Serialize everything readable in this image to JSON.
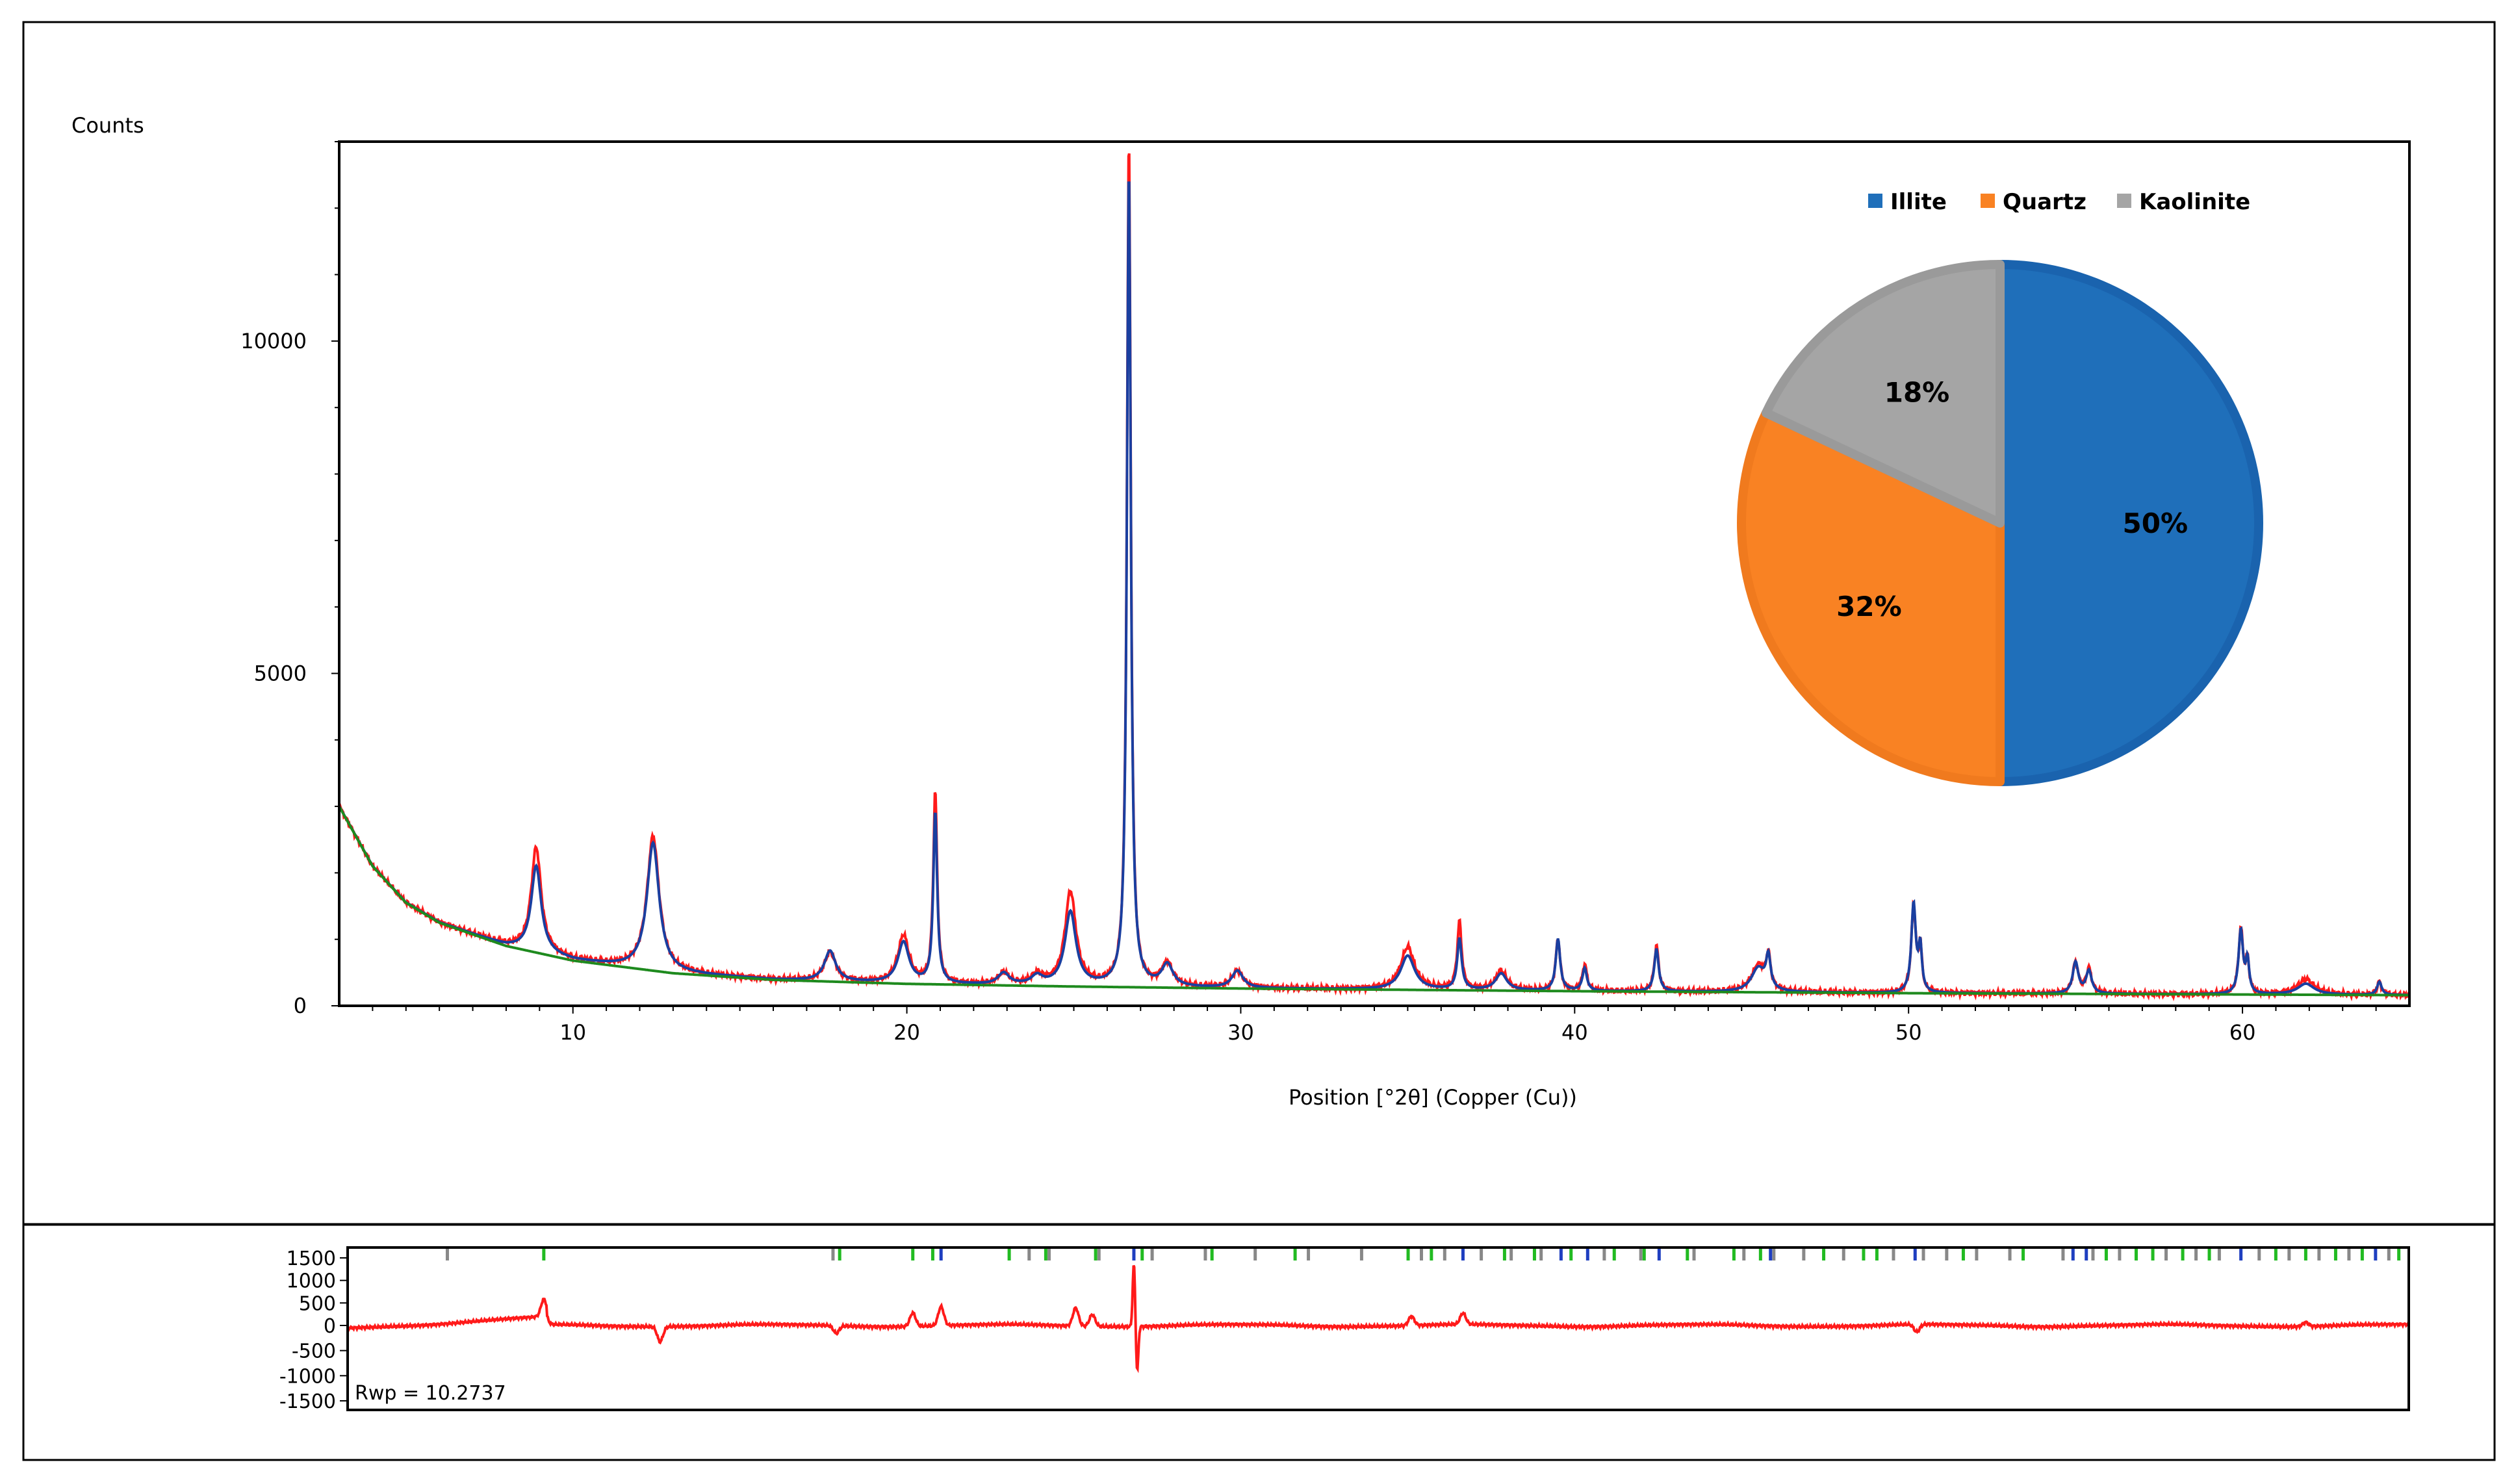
{
  "chart_data": [
    {
      "type": "line",
      "ylabel": "Counts",
      "xlabel": "Position [°2θ] (Copper (Cu))",
      "xlim": [
        3,
        65
      ],
      "ylim": [
        0,
        13000
      ],
      "x_ticks": [
        10,
        20,
        30,
        40,
        50,
        60
      ],
      "y_ticks": [
        0,
        5000,
        10000
      ],
      "series_colors": {
        "observed": "#ff1a1a",
        "calculated": "#1a3fa0",
        "background": "#1e8a1e"
      },
      "background": {
        "x": [
          3,
          4,
          5,
          6,
          8,
          10,
          13,
          16,
          20,
          25,
          30,
          40,
          50,
          60,
          65
        ],
        "y": [
          3000,
          2100,
          1550,
          1250,
          900,
          680,
          490,
          390,
          330,
          290,
          260,
          220,
          190,
          170,
          160
        ]
      },
      "peaks": [
        {
          "pos": 8.9,
          "obs": 2380,
          "calc": 2100,
          "w": 0.18
        },
        {
          "pos": 12.4,
          "obs": 2550,
          "calc": 2450,
          "w": 0.22
        },
        {
          "pos": 17.7,
          "obs": 800,
          "calc": 820,
          "w": 0.2
        },
        {
          "pos": 19.9,
          "obs": 1050,
          "calc": 950,
          "w": 0.2
        },
        {
          "pos": 20.85,
          "obs": 3200,
          "calc": 2900,
          "w": 0.07
        },
        {
          "pos": 22.9,
          "obs": 480,
          "calc": 480,
          "w": 0.2
        },
        {
          "pos": 23.9,
          "obs": 450,
          "calc": 430,
          "w": 0.2
        },
        {
          "pos": 24.9,
          "obs": 1700,
          "calc": 1400,
          "w": 0.2
        },
        {
          "pos": 26.65,
          "obs": 13000,
          "calc": 12600,
          "w": 0.07
        },
        {
          "pos": 27.8,
          "obs": 620,
          "calc": 600,
          "w": 0.2
        },
        {
          "pos": 29.9,
          "obs": 520,
          "calc": 520,
          "w": 0.2
        },
        {
          "pos": 35.0,
          "obs": 880,
          "calc": 750,
          "w": 0.25
        },
        {
          "pos": 36.55,
          "obs": 1250,
          "calc": 1000,
          "w": 0.08
        },
        {
          "pos": 37.8,
          "obs": 520,
          "calc": 480,
          "w": 0.2
        },
        {
          "pos": 39.5,
          "obs": 1000,
          "calc": 1000,
          "w": 0.08
        },
        {
          "pos": 40.3,
          "obs": 620,
          "calc": 560,
          "w": 0.08
        },
        {
          "pos": 42.45,
          "obs": 900,
          "calc": 850,
          "w": 0.08
        },
        {
          "pos": 45.5,
          "obs": 600,
          "calc": 560,
          "w": 0.25
        },
        {
          "pos": 45.8,
          "obs": 680,
          "calc": 680,
          "w": 0.08
        },
        {
          "pos": 50.15,
          "obs": 1500,
          "calc": 1520,
          "w": 0.08
        },
        {
          "pos": 50.35,
          "obs": 850,
          "calc": 850,
          "w": 0.06
        },
        {
          "pos": 55.0,
          "obs": 650,
          "calc": 650,
          "w": 0.1
        },
        {
          "pos": 55.4,
          "obs": 550,
          "calc": 520,
          "w": 0.1
        },
        {
          "pos": 59.95,
          "obs": 1150,
          "calc": 1130,
          "w": 0.08
        },
        {
          "pos": 60.15,
          "obs": 650,
          "calc": 650,
          "w": 0.06
        },
        {
          "pos": 61.9,
          "obs": 400,
          "calc": 330,
          "w": 0.3
        },
        {
          "pos": 64.1,
          "obs": 360,
          "calc": 360,
          "w": 0.08
        }
      ]
    },
    {
      "type": "pie",
      "categories": [
        "Illite",
        "Quartz",
        "Kaolinite"
      ],
      "values": [
        50,
        32,
        18
      ],
      "labels": [
        "50%",
        "32%",
        "18%"
      ],
      "colors": [
        "#1f6fba",
        "#f98223",
        "#a5a5a5"
      ],
      "edge_colors": [
        "#1a63ae",
        "#f07a1e",
        "#9a9a9a"
      ],
      "legend_position": "top"
    },
    {
      "type": "line",
      "title": "",
      "annotation": "Rwp = 10.2737",
      "xlim": [
        3,
        65
      ],
      "ylim": [
        -1500,
        1500
      ],
      "y_ticks": [
        1500,
        1000,
        500,
        0,
        -500,
        -1000,
        -1500
      ],
      "y_tick_labels": [
        "1500",
        "1000",
        "500",
        "0",
        "-500",
        "-1000",
        "-1500"
      ],
      "difference_color": "#ff1a1a",
      "difference_features": [
        {
          "pos": 8.9,
          "amp": 380
        },
        {
          "pos": 12.4,
          "amp": -300
        },
        {
          "pos": 17.7,
          "amp": -150
        },
        {
          "pos": 20.0,
          "amp": 300
        },
        {
          "pos": 20.85,
          "amp": 420
        },
        {
          "pos": 24.9,
          "amp": 400
        },
        {
          "pos": 25.4,
          "amp": 260
        },
        {
          "pos": 26.65,
          "amp": 1400
        },
        {
          "pos": 26.75,
          "amp": -900
        },
        {
          "pos": 35.0,
          "amp": 200
        },
        {
          "pos": 36.55,
          "amp": 250
        },
        {
          "pos": 50.2,
          "amp": -150
        },
        {
          "pos": 61.9,
          "amp": 90
        }
      ],
      "reflection_marks": {
        "colors": {
          "kaolinite": "#888888",
          "quartz": "#1f3fc0",
          "illite": "#22bb22"
        },
        "kaolinite": [
          6.0,
          17.6,
          23.5,
          24.1,
          25.6,
          27.2,
          28.8,
          30.3,
          31.9,
          33.5,
          35.3,
          36.0,
          37.1,
          38.0,
          38.9,
          40.8,
          41.9,
          43.5,
          45.0,
          45.9,
          46.8,
          48.0,
          49.5,
          50.4,
          51.1,
          52.0,
          53.0,
          54.6,
          55.5,
          56.3,
          57.7,
          58.6,
          59.3,
          60.5,
          61.4,
          62.3,
          63.2,
          64.4
        ],
        "quartz": [
          20.85,
          26.65,
          36.55,
          39.5,
          40.3,
          42.45,
          45.8,
          50.15,
          54.9,
          55.3,
          59.95,
          64.0
        ],
        "illite": [
          8.9,
          17.8,
          20.0,
          20.6,
          22.9,
          24.0,
          25.5,
          26.9,
          29.0,
          31.5,
          34.9,
          35.6,
          37.8,
          38.7,
          39.8,
          41.1,
          42.0,
          43.3,
          44.7,
          45.5,
          47.4,
          48.6,
          49.0,
          51.6,
          53.4,
          55.9,
          56.8,
          57.3,
          58.2,
          59.0,
          61.0,
          61.9,
          62.8,
          63.6,
          64.7
        ]
      }
    }
  ]
}
